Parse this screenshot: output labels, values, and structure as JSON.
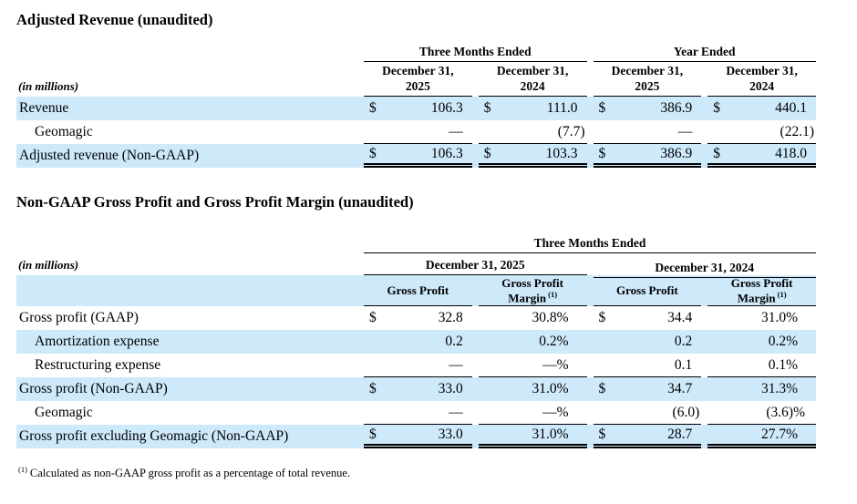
{
  "colors": {
    "row_shade": "#cde9fa",
    "rule": "#000000",
    "text": "#000000"
  },
  "section1": {
    "title": "Adjusted Revenue (unaudited)",
    "in_millions": "(in millions)",
    "groups": [
      "Three Months Ended",
      "Year Ended"
    ],
    "columns": [
      {
        "line1": "December 31,",
        "line2": "2025"
      },
      {
        "line1": "December 31,",
        "line2": "2024"
      },
      {
        "line1": "December 31,",
        "line2": "2025"
      },
      {
        "line1": "December 31,",
        "line2": "2024"
      }
    ],
    "rows": [
      {
        "label": "Revenue",
        "indent": false,
        "shaded": true,
        "rule": "none",
        "cells": [
          {
            "d": "$",
            "v": "106.3"
          },
          {
            "d": "$",
            "v": "111.0"
          },
          {
            "d": "$",
            "v": "386.9"
          },
          {
            "d": "$",
            "v": "440.1"
          }
        ]
      },
      {
        "label": "Geomagic",
        "indent": true,
        "shaded": false,
        "rule": "single",
        "cells": [
          {
            "d": "",
            "v": "—"
          },
          {
            "d": "",
            "v": "(7.7)"
          },
          {
            "d": "",
            "v": "—"
          },
          {
            "d": "",
            "v": "(22.1)"
          }
        ]
      },
      {
        "label": "Adjusted revenue (Non-GAAP)",
        "indent": false,
        "shaded": true,
        "rule": "double",
        "cells": [
          {
            "d": "$",
            "v": "106.3"
          },
          {
            "d": "$",
            "v": "103.3"
          },
          {
            "d": "$",
            "v": "386.9"
          },
          {
            "d": "$",
            "v": "418.0"
          }
        ]
      }
    ]
  },
  "section2": {
    "title": "Non-GAAP Gross Profit and Gross Profit Margin (unaudited)",
    "in_millions": "(in millions)",
    "group": "Three Months Ended",
    "date_groups": [
      "December 31, 2025",
      "December 31, 2024"
    ],
    "columns": [
      {
        "line1": "Gross Profit",
        "line2": "",
        "sup": ""
      },
      {
        "line1": "Gross Profit",
        "line2": "Margin",
        "sup": "(1)"
      },
      {
        "line1": "Gross Profit",
        "line2": "",
        "sup": ""
      },
      {
        "line1": "Gross Profit",
        "line2": "Margin",
        "sup": "(1)"
      }
    ],
    "rows": [
      {
        "label": "Gross profit (GAAP)",
        "indent": false,
        "shaded": false,
        "rule": "none",
        "cells": [
          {
            "d": "$",
            "v": "32.8"
          },
          {
            "d": "",
            "v": "30.8%"
          },
          {
            "d": "$",
            "v": "34.4"
          },
          {
            "d": "",
            "v": "31.0%"
          }
        ]
      },
      {
        "label": "Amortization expense",
        "indent": true,
        "shaded": true,
        "rule": "none",
        "cells": [
          {
            "d": "",
            "v": "0.2"
          },
          {
            "d": "",
            "v": "0.2%"
          },
          {
            "d": "",
            "v": "0.2"
          },
          {
            "d": "",
            "v": "0.2%"
          }
        ]
      },
      {
        "label": "Restructuring expense",
        "indent": true,
        "shaded": false,
        "rule": "single",
        "cells": [
          {
            "d": "",
            "v": "—"
          },
          {
            "d": "",
            "v": "—%"
          },
          {
            "d": "",
            "v": "0.1"
          },
          {
            "d": "",
            "v": "0.1%"
          }
        ]
      },
      {
        "label": "Gross profit (Non-GAAP)",
        "indent": false,
        "shaded": true,
        "rule": "none",
        "cells": [
          {
            "d": "$",
            "v": "33.0"
          },
          {
            "d": "",
            "v": "31.0%"
          },
          {
            "d": "$",
            "v": "34.7"
          },
          {
            "d": "",
            "v": "31.3%"
          }
        ]
      },
      {
        "label": "Geomagic",
        "indent": true,
        "shaded": false,
        "rule": "single",
        "cells": [
          {
            "d": "",
            "v": "—"
          },
          {
            "d": "",
            "v": "—%"
          },
          {
            "d": "",
            "v": "(6.0)"
          },
          {
            "d": "",
            "v": "(3.6)%"
          }
        ]
      },
      {
        "label": "Gross profit excluding Geomagic (Non-GAAP)",
        "indent": false,
        "shaded": true,
        "rule": "double",
        "cells": [
          {
            "d": "$",
            "v": "33.0"
          },
          {
            "d": "",
            "v": "31.0%"
          },
          {
            "d": "$",
            "v": "28.7"
          },
          {
            "d": "",
            "v": "27.7%"
          }
        ]
      }
    ]
  },
  "footnote": {
    "sup": "(1)",
    "text": "Calculated as non-GAAP gross profit as a percentage of total revenue."
  }
}
